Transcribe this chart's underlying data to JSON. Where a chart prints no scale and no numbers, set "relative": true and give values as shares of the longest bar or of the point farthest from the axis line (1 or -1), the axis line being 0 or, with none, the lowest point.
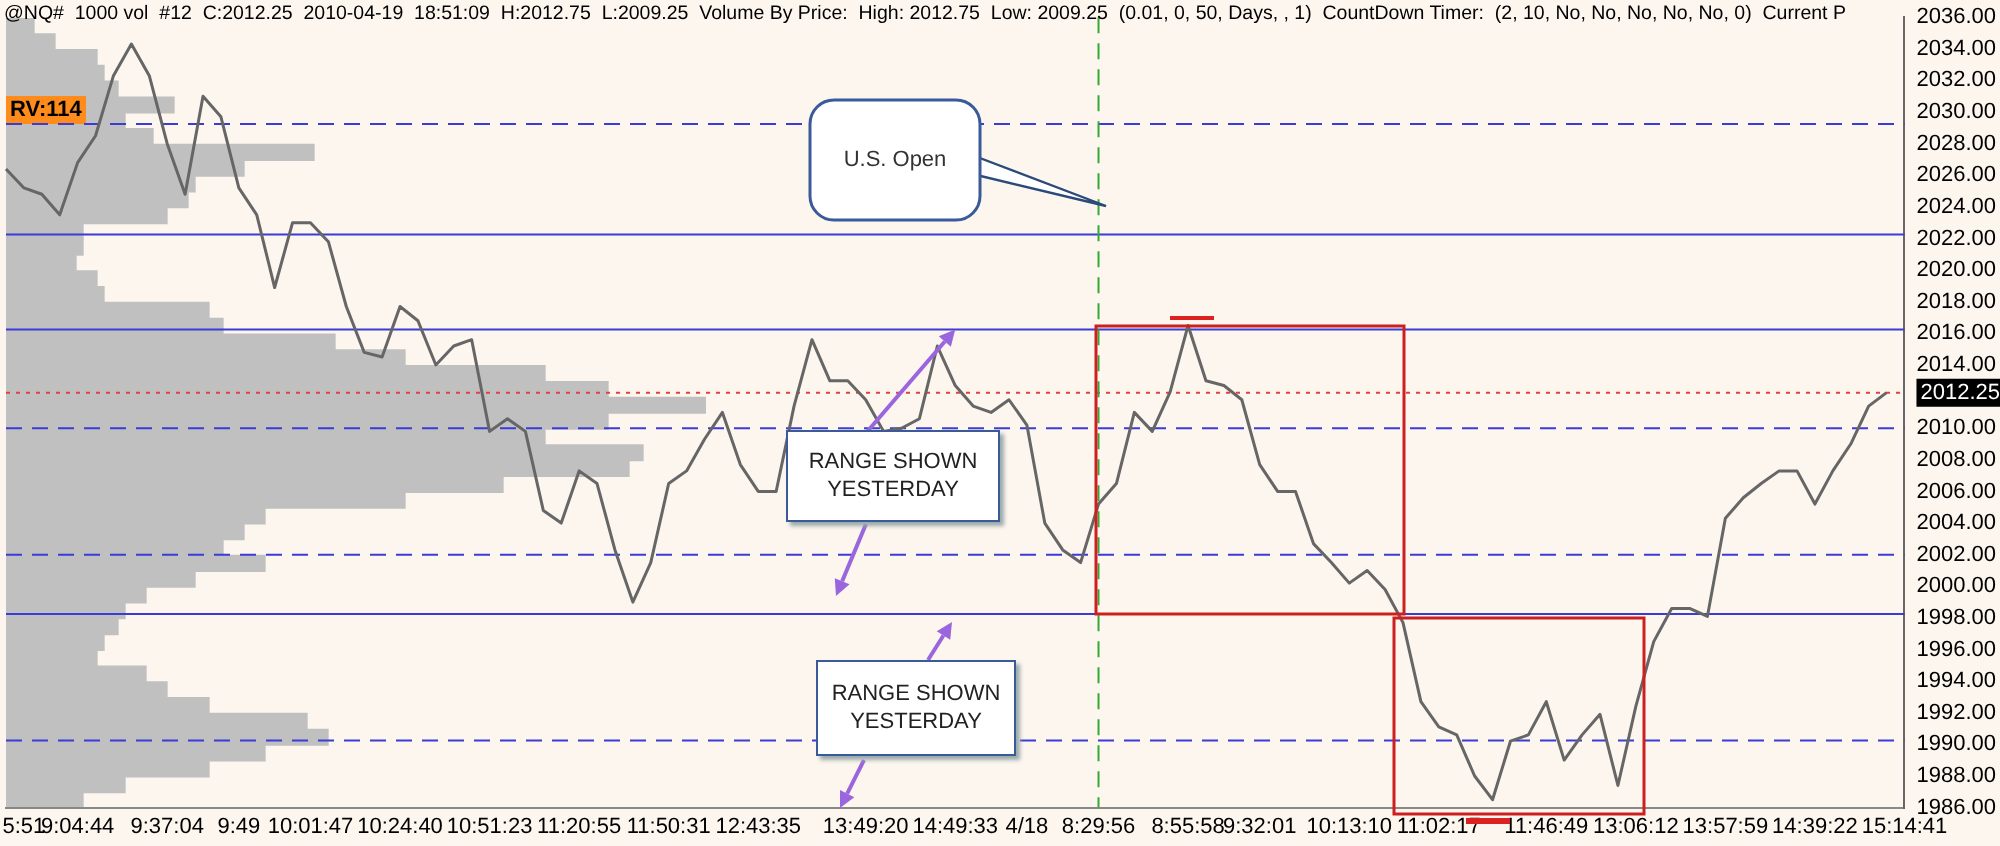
{
  "chart_data": [
    {
      "type": "line",
      "title": "@NQ#  1000 vol  #12  C:2012.25  2010-04-19  18:51:09  H:2012.75  L:2009.25  Volume By Price:  High: 2012.75  Low: 2009.25  (0.01, 0, 50, Days, , 1)  CountDown Timer:  (2, 10, No, No, No, No, No, 0)  Current P",
      "categories": [
        null,
        "5:51",
        null,
        null,
        "9:04:44",
        null,
        null,
        null,
        null,
        "9:37:04",
        null,
        null,
        null,
        "9:49",
        null,
        null,
        null,
        "10:01:47",
        null,
        null,
        null,
        null,
        "10:24:40",
        null,
        null,
        null,
        null,
        "10:51:23",
        null,
        null,
        null,
        null,
        "11:20:55",
        null,
        null,
        null,
        null,
        "11:50:31",
        null,
        null,
        null,
        null,
        "12:43:35",
        null,
        null,
        null,
        null,
        null,
        "13:49:20",
        null,
        null,
        null,
        null,
        "14:49:33",
        null,
        null,
        null,
        "4/18",
        null,
        null,
        null,
        "8:29:56",
        null,
        null,
        null,
        null,
        "8:55:58",
        null,
        null,
        null,
        "9:32:01",
        null,
        null,
        null,
        null,
        "10:13:10",
        null,
        null,
        null,
        null,
        "11:02:17",
        null,
        null,
        null,
        null,
        null,
        "11:46:49",
        null,
        null,
        null,
        null,
        "13:06:12",
        null,
        null,
        null,
        null,
        "13:57:59",
        null,
        null,
        null,
        null,
        "14:39:22",
        null,
        null,
        null,
        null,
        "15:14:41"
      ],
      "series": [
        {
          "color": "#666666",
          "values": [
            2026.4,
            2025.2,
            2024.8,
            2023.5,
            2026.8,
            2028.5,
            2032.3,
            2034.3,
            2032.3,
            2028,
            2024.8,
            2031,
            2029.7,
            2025.2,
            2023.5,
            2018.9,
            2023,
            2023,
            2021.8,
            2017.7,
            2014.8,
            2014.5,
            2017.7,
            2016.8,
            2014,
            2015.2,
            2015.6,
            2009.8,
            2010.6,
            2009.8,
            2004.8,
            2004,
            2007.3,
            2006.5,
            2002.3,
            1999,
            2001.5,
            2006.5,
            2007.3,
            2009.3,
            2011,
            2007.7,
            2006,
            2006,
            2011.4,
            2015.6,
            2013,
            2013,
            2011.8,
            2009.8,
            2010,
            2010.6,
            2015.2,
            2012.7,
            2011.4,
            2011,
            2011.8,
            2010.2,
            2004,
            2002.3,
            2001.5,
            2005.2,
            2006.5,
            2011,
            2009.8,
            2012.3,
            2016.5,
            2013,
            2012.7,
            2011.8,
            2007.7,
            2006,
            2006,
            2002.7,
            2001.5,
            2000.2,
            2001,
            1999.8,
            1997.7,
            1992.7,
            1991.1,
            1990.6,
            1988,
            1986.5,
            1990.2,
            1990.6,
            1992.7,
            1989,
            1990.6,
            1991.9,
            1987.4,
            1992.4,
            1996.5,
            1998.6,
            1998.6,
            1998.1,
            2004.3,
            2005.6,
            2006.5,
            2007.3,
            2007.3,
            2005.2,
            2007.3,
            2009,
            2011.4,
            2012.25,
            null
          ]
        }
      ],
      "ylim": [
        1986,
        2036
      ],
      "yticks": [
        {
          "value": 2036,
          "label": "2036.00"
        },
        {
          "value": 2034,
          "label": "2034.00"
        },
        {
          "value": 2032,
          "label": "2032.00"
        },
        {
          "value": 2030,
          "label": "2030.00"
        },
        {
          "value": 2028,
          "label": "2028.00"
        },
        {
          "value": 2026,
          "label": "2026.00"
        },
        {
          "value": 2024,
          "label": "2024.00"
        },
        {
          "value": 2022,
          "label": "2022.00"
        },
        {
          "value": 2020,
          "label": "2020.00"
        },
        {
          "value": 2018,
          "label": "2018.00"
        },
        {
          "value": 2016,
          "label": "2016.00"
        },
        {
          "value": 2014,
          "label": "2014.00"
        },
        {
          "value": 2010,
          "label": "2010.00"
        },
        {
          "value": 2008,
          "label": "2008.00"
        },
        {
          "value": 2006,
          "label": "2006.00"
        },
        {
          "value": 2004,
          "label": "2004.00"
        },
        {
          "value": 2002,
          "label": "2002.00"
        },
        {
          "value": 2000,
          "label": "2000.00"
        },
        {
          "value": 1998,
          "label": "1998.00"
        },
        {
          "value": 1996,
          "label": "1996.00"
        },
        {
          "value": 1994,
          "label": "1994.00"
        },
        {
          "value": 1992,
          "label": "1992.00"
        },
        {
          "value": 1990,
          "label": "1990.00"
        },
        {
          "value": 1988,
          "label": "1988.00"
        },
        {
          "value": 1986,
          "label": "1986.00"
        }
      ],
      "ref_lines": [
        {
          "axis": "y",
          "value": 2029.25,
          "color": "#3b3bd6",
          "line_style": "dashed"
        },
        {
          "axis": "y",
          "value": 2022.25,
          "color": "#3b3bd6",
          "line_style": "solid"
        },
        {
          "axis": "y",
          "value": 2016.25,
          "color": "#3b3bd6",
          "line_style": "solid"
        },
        {
          "axis": "y",
          "value": 2010,
          "color": "#3b3bd6",
          "line_style": "dashed"
        },
        {
          "axis": "y",
          "value": 2002,
          "color": "#3b3bd6",
          "line_style": "dashed"
        },
        {
          "axis": "y",
          "value": 1998.25,
          "color": "#3b3bd6",
          "line_style": "solid"
        },
        {
          "axis": "y",
          "value": 1990.25,
          "color": "#3b3bd6",
          "line_style": "dashed"
        },
        {
          "axis": "y",
          "value": 2012.25,
          "color": "#e04040",
          "line_style": "dotted",
          "label": "2012.25"
        },
        {
          "axis": "x",
          "value": "8:29:56",
          "color": "#33aa33",
          "line_style": "dashed"
        }
      ],
      "annotations": [
        "U.S. Open",
        {
          "text": "RANGE SHOWN YESTERDAY",
          "x": "14:49:33",
          "y": 2016.25
        },
        "RANGE SHOWN YESTERDAY"
      ],
      "grid": false,
      "legend": false,
      "marker": "none",
      "line_style": "solid"
    },
    {
      "type": "bar",
      "orientation": "horizontal",
      "relative": true,
      "color": "#c0c0c0",
      "categories": [
        null,
        null,
        null,
        null,
        null,
        null,
        null,
        null,
        null,
        null,
        null,
        null,
        null,
        null,
        null,
        null,
        null,
        null,
        null,
        null,
        null,
        null,
        null,
        null,
        null,
        null,
        null,
        null,
        null,
        null,
        null,
        null,
        null,
        null,
        null,
        null,
        null,
        null,
        null,
        null,
        null,
        null,
        null,
        null,
        null,
        null,
        null,
        null,
        null,
        null
      ],
      "values": [
        0.04,
        0.07,
        0.13,
        0.14,
        0.16,
        0.24,
        0.17,
        0.21,
        0.44,
        0.34,
        0.27,
        0.26,
        0.23,
        0.11,
        0.11,
        0.1,
        0.13,
        0.14,
        0.29,
        0.31,
        0.47,
        0.57,
        0.77,
        0.86,
        1,
        0.86,
        0.77,
        0.91,
        0.89,
        0.71,
        0.57,
        0.37,
        0.34,
        0.31,
        0.37,
        0.27,
        0.2,
        0.17,
        0.16,
        0.14,
        0.13,
        0.2,
        0.23,
        0.29,
        0.43,
        0.46,
        0.37,
        0.29,
        0.17,
        0.11
      ],
      "annotations": [
        "RV:114"
      ],
      "legend": false
    }
  ]
}
